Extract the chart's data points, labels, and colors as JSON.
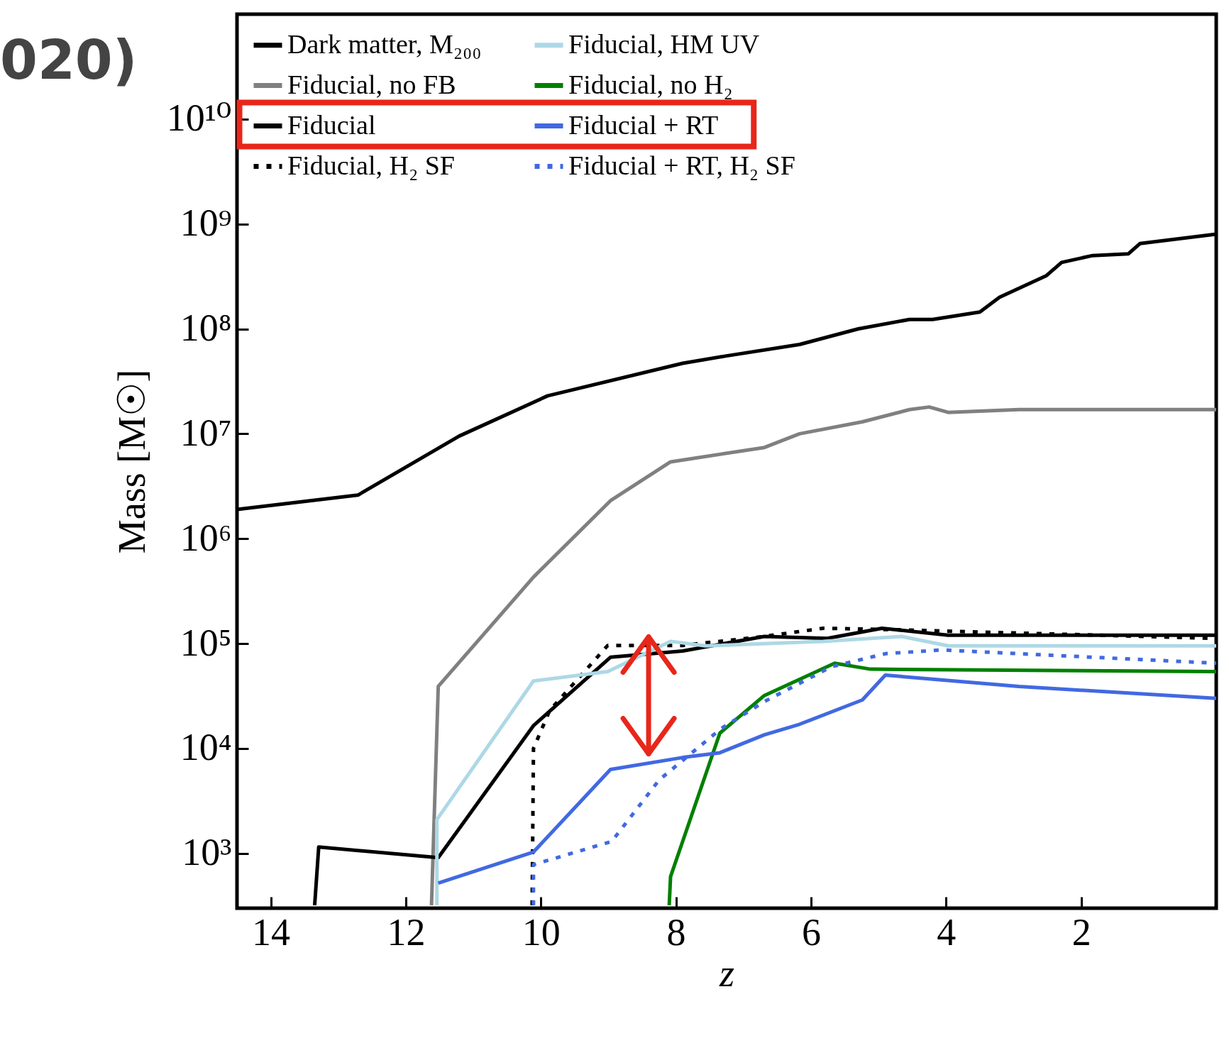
{
  "chart_data": {
    "type": "line",
    "xlabel": "z",
    "ylabel": "Mass [M☉]",
    "log": "y",
    "xlim": [
      14.5,
      0
    ],
    "xticks": [
      14,
      12,
      10,
      8,
      6,
      4,
      2
    ],
    "ylim": [
      300,
      100000000000
    ],
    "yticks": [
      {
        "value": 1000,
        "label": "10³"
      },
      {
        "value": 10000,
        "label": "10⁴"
      },
      {
        "value": 100000,
        "label": "10⁵"
      },
      {
        "value": 1000000,
        "label": "10⁶"
      },
      {
        "value": 10000000,
        "label": "10⁷"
      },
      {
        "value": 100000000,
        "label": "10⁸"
      },
      {
        "value": 1000000000,
        "label": "10⁹"
      },
      {
        "value": 10000000000,
        "label": "10¹⁰"
      }
    ],
    "grid": false,
    "legend": "top left",
    "marker": "none",
    "annotations": [
      "020)"
    ],
    "series": [
      {
        "name": "Dark matter, M₂₀₀",
        "color": "#000000",
        "line_style": "solid",
        "x": [
          14.5,
          12.71,
          11.21,
          9.9,
          7.9,
          7.27,
          6.17,
          5.3,
          4.54,
          4.2,
          3.5,
          3.21,
          2.52,
          2.29,
          1.83,
          1.3,
          1.13,
          0
        ],
        "values": [
          1900000,
          2600000,
          9500000,
          23000000,
          47000000,
          55000000,
          71000000,
          100000000,
          123000000,
          123000000,
          145000000,
          200000000,
          320000000,
          430000000,
          500000000,
          520000000,
          650000000,
          800000000
        ]
      },
      {
        "name": "Fiducial, no FB",
        "color": "#808080",
        "line_style": "solid",
        "x": [
          11.62,
          11.52,
          10.11,
          8.97,
          8.08,
          6.69,
          6.17,
          5.24,
          4.54,
          4.25,
          3.97,
          2.92,
          0
        ],
        "values": [
          320,
          39000,
          430000,
          2300000,
          5400000,
          7400000,
          10000000,
          13000000,
          17000000,
          18000000,
          16000000,
          17000000,
          17000000
        ]
      },
      {
        "name": "Fiducial",
        "color": "#000000",
        "line_style": "solid",
        "x": [
          13.35,
          13.29,
          11.52,
          10.11,
          8.97,
          7.9,
          6.69,
          5.76,
          4.95,
          3.97,
          0
        ],
        "values": [
          320,
          1150,
          910,
          16500,
          74000,
          85000,
          117000,
          112000,
          140000,
          120000,
          120000
        ]
      },
      {
        "name": "Fiducial, H₂ SF",
        "color": "#000000",
        "line_style": "dotted",
        "x": [
          10.13,
          10.11,
          9.87,
          9.01,
          7.9,
          6.69,
          5.82,
          4.66,
          0
        ],
        "values": [
          320,
          10000,
          23000,
          96000,
          96000,
          117000,
          140000,
          135000,
          112000
        ]
      },
      {
        "name": "Fiducial, HM UV",
        "color": "#add8e6",
        "line_style": "solid",
        "x": [
          11.54,
          11.54,
          10.11,
          9.01,
          8.08,
          7.56,
          5.82,
          4.66,
          3.97,
          0
        ],
        "values": [
          320,
          2100,
          44000,
          54000,
          105000,
          95000,
          105000,
          117000,
          95000,
          95000
        ]
      },
      {
        "name": "Fiducial, no H₂",
        "color": "#008000",
        "line_style": "solid",
        "x": [
          8.1,
          8.08,
          7.35,
          6.69,
          5.65,
          5.12,
          0
        ],
        "values": [
          320,
          600,
          14000,
          32000,
          65000,
          57000,
          54000
        ]
      },
      {
        "name": "Fiducial + RT",
        "color": "#4169e1",
        "line_style": "solid",
        "x": [
          11.52,
          10.11,
          8.97,
          7.9,
          7.35,
          6.69,
          6.17,
          5.24,
          4.9,
          2.92,
          0
        ],
        "values": [
          520,
          1030,
          6300,
          8200,
          9100,
          13500,
          17000,
          29000,
          50000,
          39000,
          30000
        ]
      },
      {
        "name": "Fiducial + RT, H₂ SF",
        "color": "#4169e1",
        "line_style": "dotted",
        "x": [
          10.11,
          10.11,
          8.95,
          8.25,
          7.33,
          6.69,
          5.7,
          4.9,
          4.08,
          0
        ],
        "values": [
          320,
          780,
          1300,
          5000,
          15500,
          28000,
          60000,
          80000,
          87000,
          65000
        ]
      }
    ]
  }
}
